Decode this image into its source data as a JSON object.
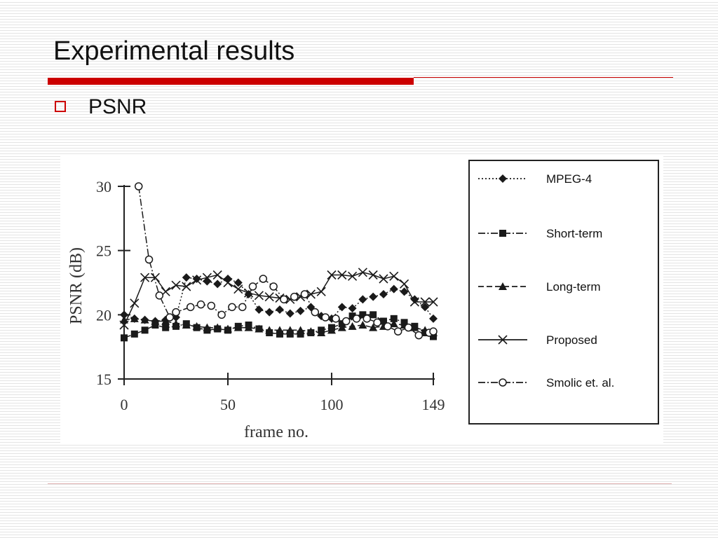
{
  "slide": {
    "title": "Experimental results",
    "bullet": "PSNR"
  },
  "colors": {
    "accent": "#cc0000",
    "text": "#111111",
    "series": "#1a1a1a"
  },
  "icons": {
    "bullet": "hollow-square-bullet"
  },
  "chart_data": {
    "type": "line",
    "xlabel": "frame no.",
    "ylabel": "PSNR (dB)",
    "xlim": [
      0,
      149
    ],
    "ylim": [
      15,
      30
    ],
    "xticks": [
      "0",
      "50",
      "100",
      "149"
    ],
    "yticks": [
      "15",
      "20",
      "25",
      "30"
    ],
    "grid": false,
    "legend_position": "right",
    "series": [
      {
        "name": "MPEG-4",
        "marker": "diamond",
        "dash": "2,3",
        "x": [
          0,
          5,
          10,
          15,
          20,
          25,
          30,
          35,
          40,
          45,
          50,
          55,
          60,
          65,
          70,
          75,
          80,
          85,
          90,
          95,
          100,
          105,
          110,
          115,
          120,
          125,
          130,
          135,
          140,
          145,
          149
        ],
        "y": [
          20.0,
          19.7,
          19.6,
          19.5,
          19.6,
          19.8,
          22.9,
          22.8,
          22.6,
          22.4,
          22.8,
          22.5,
          21.6,
          20.4,
          20.2,
          20.4,
          20.1,
          20.3,
          20.6,
          19.9,
          19.7,
          20.6,
          20.5,
          21.2,
          21.4,
          21.6,
          22.0,
          21.8,
          21.2,
          20.6,
          19.7
        ]
      },
      {
        "name": "Short-term",
        "marker": "square",
        "dash": "10,3,2,3",
        "x": [
          0,
          5,
          10,
          15,
          20,
          25,
          30,
          35,
          40,
          45,
          50,
          55,
          60,
          65,
          70,
          75,
          80,
          85,
          90,
          95,
          100,
          105,
          110,
          115,
          120,
          125,
          130,
          135,
          140,
          145,
          149
        ],
        "y": [
          18.2,
          18.5,
          18.8,
          19.2,
          19.0,
          19.1,
          19.3,
          19.0,
          18.8,
          18.9,
          18.8,
          19.1,
          19.2,
          18.9,
          18.6,
          18.5,
          18.5,
          18.5,
          18.6,
          18.8,
          19.0,
          19.3,
          19.9,
          20.0,
          20.0,
          19.5,
          19.7,
          19.4,
          19.1,
          18.6,
          18.3
        ]
      },
      {
        "name": "Long-term",
        "marker": "triangle",
        "dash": "8,4",
        "x": [
          0,
          5,
          10,
          15,
          20,
          25,
          30,
          35,
          40,
          45,
          50,
          55,
          60,
          65,
          70,
          75,
          80,
          85,
          90,
          95,
          100,
          105,
          110,
          115,
          120,
          125,
          130,
          135,
          140,
          145,
          149
        ],
        "y": [
          19.6,
          19.7,
          19.6,
          19.5,
          19.5,
          19.3,
          19.2,
          19.1,
          19.0,
          19.0,
          18.9,
          19.0,
          19.0,
          18.9,
          18.8,
          18.8,
          18.8,
          18.8,
          18.7,
          18.6,
          18.8,
          19.0,
          19.1,
          19.2,
          19.0,
          19.1,
          19.3,
          19.2,
          19.0,
          18.8,
          18.6
        ]
      },
      {
        "name": "Proposed",
        "marker": "x",
        "dash": "",
        "x": [
          0,
          5,
          10,
          15,
          20,
          25,
          30,
          35,
          40,
          45,
          50,
          55,
          60,
          65,
          70,
          75,
          80,
          85,
          90,
          95,
          100,
          105,
          110,
          115,
          120,
          125,
          130,
          135,
          140,
          145,
          149
        ],
        "y": [
          19.2,
          20.9,
          22.9,
          22.9,
          21.8,
          22.3,
          22.2,
          22.7,
          22.9,
          23.1,
          22.5,
          22.0,
          21.7,
          21.5,
          21.4,
          21.3,
          21.2,
          21.4,
          21.6,
          21.8,
          23.1,
          23.1,
          23.0,
          23.3,
          23.1,
          22.8,
          23.0,
          22.4,
          21.0,
          21.0,
          21.0
        ]
      },
      {
        "name": "Smolic et. al.",
        "marker": "circle",
        "dash": "10,3,2,3",
        "x": [
          7,
          12,
          17,
          22,
          25,
          32,
          37,
          42,
          47,
          52,
          57,
          62,
          67,
          72,
          77,
          82,
          87,
          92,
          97,
          102,
          107,
          112,
          117,
          122,
          127,
          132,
          137,
          142,
          147,
          149
        ],
        "y": [
          30.0,
          24.3,
          21.5,
          19.8,
          20.2,
          20.6,
          20.8,
          20.7,
          20.0,
          20.6,
          20.6,
          22.2,
          22.8,
          22.2,
          21.2,
          21.4,
          21.6,
          20.2,
          19.8,
          19.7,
          19.5,
          19.7,
          19.7,
          19.4,
          19.1,
          18.7,
          19.0,
          18.4,
          18.6,
          18.7
        ]
      }
    ]
  }
}
